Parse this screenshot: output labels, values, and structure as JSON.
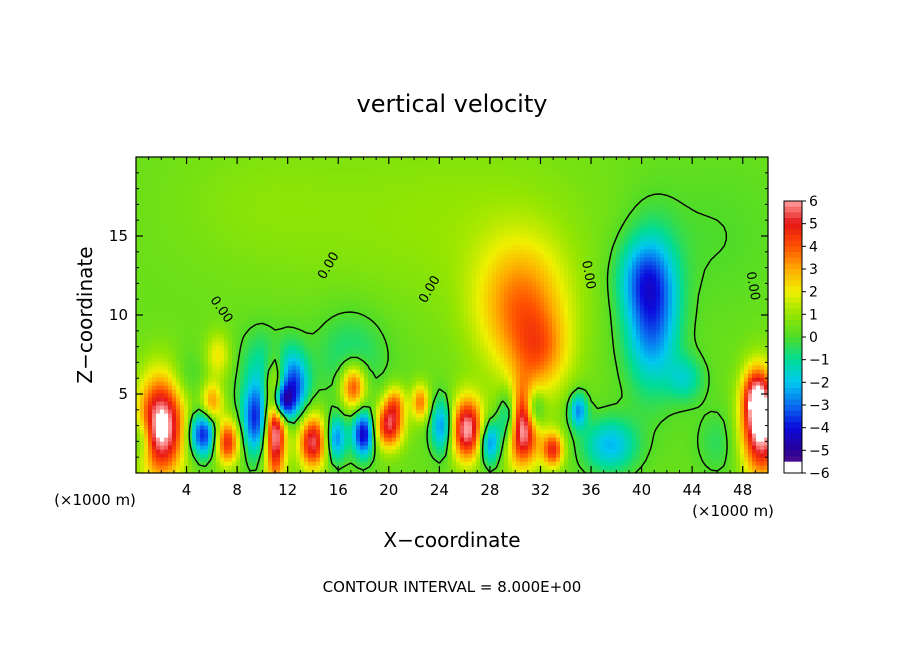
{
  "chart_data": {
    "type": "heatmap",
    "title": "vertical velocity",
    "xlabel": "X−coordinate",
    "ylabel": "Z−coordinate",
    "x_unit_left": "(×1000 m)",
    "x_unit_right": "(×1000 m)",
    "footer": "CONTOUR INTERVAL = 8.000E+00",
    "xlim": [
      0,
      50
    ],
    "ylim": [
      0,
      20
    ],
    "x_ticks": [
      4,
      8,
      12,
      16,
      20,
      24,
      28,
      32,
      36,
      40,
      44,
      48
    ],
    "x_tick_labels": [
      "4",
      "8",
      "12",
      "16",
      "20",
      "24",
      "28",
      "32",
      "36",
      "40",
      "44",
      "48"
    ],
    "y_ticks": [
      5,
      10,
      15
    ],
    "y_tick_labels": [
      "5",
      "10",
      "15"
    ],
    "colorbar": {
      "range": [
        -6,
        6
      ],
      "tick_labels": [
        "6",
        "5",
        "4",
        "3",
        "2",
        "1",
        "0",
        "−1",
        "−2",
        "−3",
        "−4",
        "−5",
        "−6"
      ]
    },
    "contour_label": "0.00",
    "blobs": [
      {
        "x": 30.5,
        "z": 10.5,
        "sx": 2.6,
        "sz": 3.0,
        "v": 3.2
      },
      {
        "x": 32.0,
        "z": 7.5,
        "sx": 1.6,
        "sz": 1.8,
        "v": 2.0
      },
      {
        "x": 40.8,
        "z": 10.2,
        "sx": 1.5,
        "sz": 3.2,
        "v": -3.8
      },
      {
        "x": 40.0,
        "z": 12.5,
        "sx": 1.5,
        "sz": 1.6,
        "v": -1.5
      },
      {
        "x": 43.5,
        "z": 6.0,
        "sx": 1.0,
        "sz": 1.0,
        "v": -1.6
      },
      {
        "x": 37.5,
        "z": 1.8,
        "sx": 1.5,
        "sz": 1.2,
        "v": -2.5
      },
      {
        "x": 30.5,
        "z": 3.0,
        "sx": 1.0,
        "sz": 1.7,
        "v": 6.8
      },
      {
        "x": 29.5,
        "z": 3.5,
        "sx": 0.6,
        "sz": 1.3,
        "v": -4.5
      },
      {
        "x": 31.5,
        "z": 4.0,
        "sx": 0.6,
        "sz": 1.0,
        "v": -3.5
      },
      {
        "x": 26.2,
        "z": 2.8,
        "sx": 0.9,
        "sz": 1.4,
        "v": 5.8
      },
      {
        "x": 24.2,
        "z": 3.0,
        "sx": 0.6,
        "sz": 1.2,
        "v": -3.2
      },
      {
        "x": 28.0,
        "z": 2.0,
        "sx": 0.6,
        "sz": 1.0,
        "v": -3.5
      },
      {
        "x": 33.0,
        "z": 1.5,
        "sx": 0.6,
        "sz": 0.8,
        "v": 4.2
      },
      {
        "x": 35.0,
        "z": 4.0,
        "sx": 0.5,
        "sz": 0.8,
        "v": -3.0
      },
      {
        "x": 22.5,
        "z": 4.5,
        "sx": 0.5,
        "sz": 0.8,
        "v": 3.2
      },
      {
        "x": 20.0,
        "z": 3.0,
        "sx": 0.8,
        "sz": 1.0,
        "v": 4.8
      },
      {
        "x": 18.0,
        "z": 2.5,
        "sx": 0.6,
        "sz": 1.0,
        "v": -4.8
      },
      {
        "x": 20.5,
        "z": 4.5,
        "sx": 0.6,
        "sz": 0.8,
        "v": 2.5
      },
      {
        "x": 17.2,
        "z": 5.5,
        "sx": 0.7,
        "sz": 1.0,
        "v": 4.2
      },
      {
        "x": 15.8,
        "z": 2.2,
        "sx": 0.6,
        "sz": 1.0,
        "v": -3.2
      },
      {
        "x": 14.0,
        "z": 2.0,
        "sx": 0.8,
        "sz": 1.2,
        "v": 5.2
      },
      {
        "x": 11.0,
        "z": 3.0,
        "sx": 0.6,
        "sz": 2.4,
        "v": 6.5
      },
      {
        "x": 11.5,
        "z": 4.5,
        "sx": 0.6,
        "sz": 0.8,
        "v": -5.5
      },
      {
        "x": 12.5,
        "z": 5.5,
        "sx": 0.8,
        "sz": 1.4,
        "v": -3.5
      },
      {
        "x": 9.5,
        "z": 3.5,
        "sx": 0.8,
        "sz": 1.6,
        "v": -4.2
      },
      {
        "x": 7.2,
        "z": 2.0,
        "sx": 0.7,
        "sz": 1.0,
        "v": 4.5
      },
      {
        "x": 6.0,
        "z": 4.5,
        "sx": 0.6,
        "sz": 0.9,
        "v": 3.0
      },
      {
        "x": 5.3,
        "z": 2.5,
        "sx": 0.8,
        "sz": 1.0,
        "v": -4.5
      },
      {
        "x": 2.0,
        "z": 3.0,
        "sx": 1.3,
        "sz": 2.2,
        "v": 6.5
      },
      {
        "x": 0.5,
        "z": 2.2,
        "sx": 0.6,
        "sz": 1.0,
        "v": -2.0
      },
      {
        "x": 10.5,
        "z": 7.0,
        "sx": 1.5,
        "sz": 1.6,
        "v": -1.5
      },
      {
        "x": 17.0,
        "z": 7.5,
        "sx": 2.0,
        "sz": 2.0,
        "v": -1.2
      },
      {
        "x": 6.5,
        "z": 7.5,
        "sx": 0.7,
        "sz": 1.0,
        "v": 1.8
      },
      {
        "x": 4.0,
        "z": 6.0,
        "sx": 1.0,
        "sz": 1.2,
        "v": -0.8
      },
      {
        "x": 49.5,
        "z": 3.0,
        "sx": 1.1,
        "sz": 2.2,
        "v": 6.5
      },
      {
        "x": 49.0,
        "z": 5.0,
        "sx": 0.7,
        "sz": 1.2,
        "v": 3.0
      },
      {
        "x": 46.0,
        "z": 2.0,
        "sx": 1.2,
        "sz": 1.5,
        "v": -0.8
      },
      {
        "x": 25.0,
        "z": 16.0,
        "sx": 8.0,
        "sz": 4.0,
        "v": 0.6
      },
      {
        "x": 10.0,
        "z": 17.0,
        "sx": 5.0,
        "sz": 3.0,
        "v": 0.4
      },
      {
        "x": 45.0,
        "z": 15.0,
        "sx": 4.0,
        "sz": 3.0,
        "v": -0.4
      }
    ]
  }
}
